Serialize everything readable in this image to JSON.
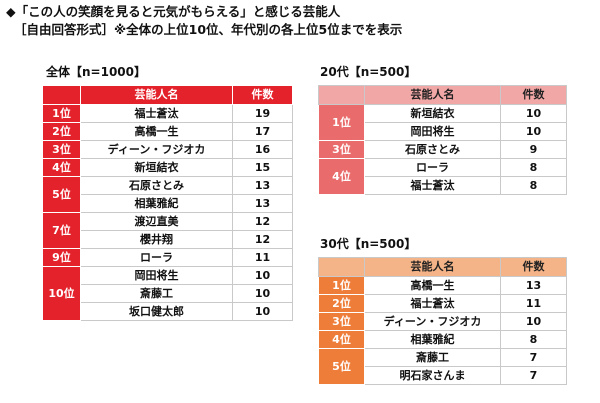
{
  "header": {
    "title": "◆「この人の笑顔を見ると元気がもらえる」と感じる芸能人",
    "subtitle": "［自由回答形式］※全体の上位10位、年代別の各上位5位までを表示"
  },
  "overall": {
    "title": "全体【n=1000】",
    "col_name": "芸能人名",
    "col_count": "件数",
    "rows": [
      {
        "rank": "1位",
        "name": "福士蒼汰",
        "count": "19"
      },
      {
        "rank": "2位",
        "name": "高橋一生",
        "count": "17"
      },
      {
        "rank": "3位",
        "name": "ディーン・フジオカ",
        "count": "16"
      },
      {
        "rank": "4位",
        "name": "新垣結衣",
        "count": "15"
      },
      {
        "rank": "5位",
        "name": "石原さとみ",
        "count": "13"
      },
      {
        "rank": "",
        "name": "相葉雅紀",
        "count": "13"
      },
      {
        "rank": "7位",
        "name": "渡辺直美",
        "count": "12"
      },
      {
        "rank": "",
        "name": "櫻井翔",
        "count": "12"
      },
      {
        "rank": "9位",
        "name": "ローラ",
        "count": "11"
      },
      {
        "rank": "10位",
        "name": "岡田将生",
        "count": "10"
      },
      {
        "rank": "",
        "name": "斎藤工",
        "count": "10"
      },
      {
        "rank": "",
        "name": "坂口健太郎",
        "count": "10"
      }
    ]
  },
  "age20": {
    "title": "20代【n=500】",
    "col_name": "芸能人名",
    "col_count": "件数",
    "rows": [
      {
        "rank": "1位",
        "name": "新垣結衣",
        "count": "10"
      },
      {
        "rank": "",
        "name": "岡田将生",
        "count": "10"
      },
      {
        "rank": "3位",
        "name": "石原さとみ",
        "count": "9"
      },
      {
        "rank": "4位",
        "name": "ローラ",
        "count": "8"
      },
      {
        "rank": "",
        "name": "福士蒼汰",
        "count": "8"
      }
    ]
  },
  "age30": {
    "title": "30代【n=500】",
    "col_name": "芸能人名",
    "col_count": "件数",
    "rows": [
      {
        "rank": "1位",
        "name": "高橋一生",
        "count": "13"
      },
      {
        "rank": "2位",
        "name": "福士蒼汰",
        "count": "11"
      },
      {
        "rank": "3位",
        "name": "ディーン・フジオカ",
        "count": "10"
      },
      {
        "rank": "4位",
        "name": "相葉雅紀",
        "count": "8"
      },
      {
        "rank": "5位",
        "name": "斎藤工",
        "count": "7"
      },
      {
        "rank": "",
        "name": "明石家さんま",
        "count": "7"
      }
    ]
  },
  "colors": {
    "overall_accent": "#e4222b",
    "age20_header": "#f2a7a7",
    "age20_rank": "#e96b6b",
    "age30_header": "#f4b487",
    "age30_rank": "#ee7d3a"
  }
}
